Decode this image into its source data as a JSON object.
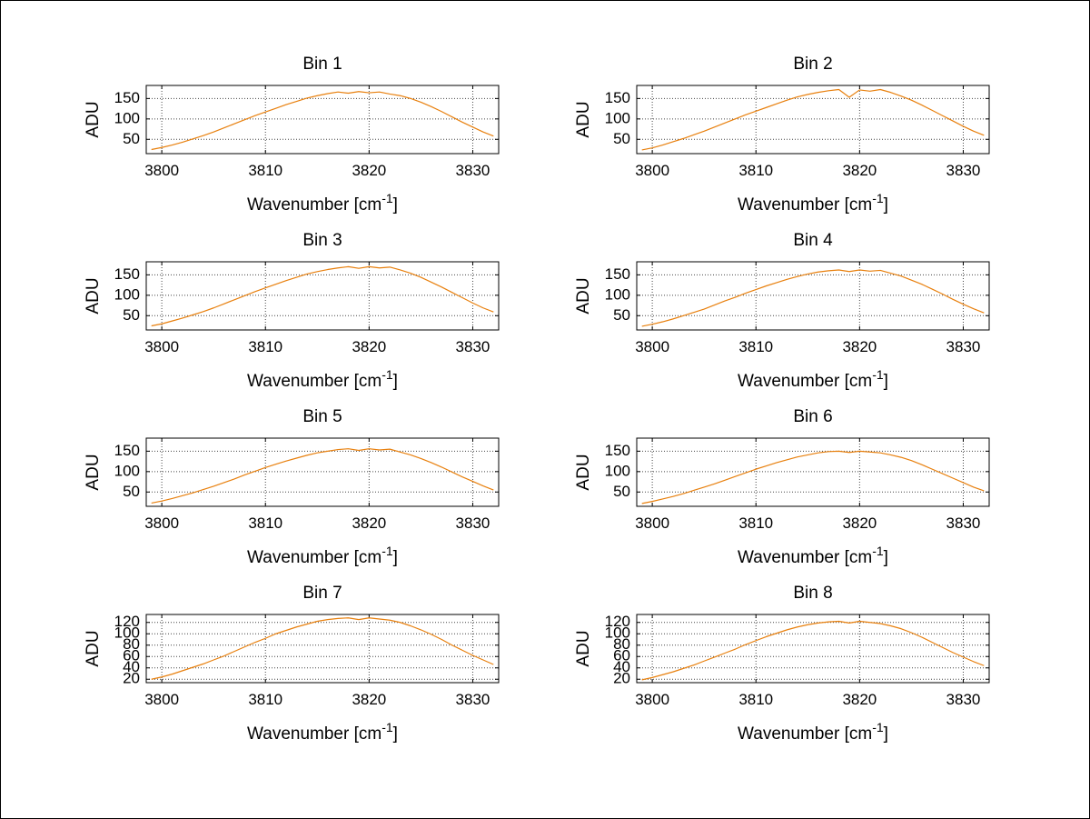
{
  "figure": {
    "background": "#ffffff",
    "border_color": "#000000"
  },
  "style": {
    "line_color": "#e8800e",
    "grid_color": "#444444",
    "axis_color": "#000000",
    "text_color": "#000000"
  },
  "labels": {
    "xlabel_main": "Wavenumber [cm",
    "xlabel_sup": "-1",
    "xlabel_end": "]",
    "ylabel": "ADU"
  },
  "chart_data": [
    {
      "type": "line",
      "title": "Bin 1",
      "xlabel": "Wavenumber [cm^-1]",
      "ylabel": "ADU",
      "x_start": 3799,
      "x_step": 1,
      "xlim": [
        3798.5,
        3832.5
      ],
      "x_ticks": [
        3800,
        3810,
        3820,
        3830
      ],
      "ylim": [
        15,
        182
      ],
      "y_ticks": [
        50,
        100,
        150
      ],
      "grid": true,
      "legend": false,
      "values": [
        25,
        30,
        36,
        43,
        51,
        59,
        68,
        78,
        88,
        98,
        108,
        117,
        126,
        135,
        143,
        151,
        157,
        162,
        166,
        163,
        167,
        164,
        166,
        161,
        157,
        150,
        141,
        130,
        118,
        105,
        92,
        80,
        68,
        58
      ]
    },
    {
      "type": "line",
      "title": "Bin 2",
      "xlabel": "Wavenumber [cm^-1]",
      "ylabel": "ADU",
      "x_start": 3799,
      "x_step": 1,
      "xlim": [
        3798.5,
        3832.5
      ],
      "x_ticks": [
        3800,
        3810,
        3820,
        3830
      ],
      "ylim": [
        15,
        182
      ],
      "y_ticks": [
        50,
        100,
        150
      ],
      "grid": true,
      "legend": false,
      "values": [
        24,
        29,
        36,
        44,
        52,
        61,
        70,
        80,
        90,
        100,
        110,
        119,
        128,
        137,
        146,
        154,
        160,
        165,
        169,
        172,
        153,
        171,
        168,
        172,
        165,
        156,
        146,
        134,
        121,
        108,
        95,
        82,
        70,
        60
      ]
    },
    {
      "type": "line",
      "title": "Bin 3",
      "xlabel": "Wavenumber [cm^-1]",
      "ylabel": "ADU",
      "x_start": 3799,
      "x_step": 1,
      "xlim": [
        3798.5,
        3832.5
      ],
      "x_ticks": [
        3800,
        3810,
        3820,
        3830
      ],
      "ylim": [
        15,
        182
      ],
      "y_ticks": [
        50,
        100,
        150
      ],
      "grid": true,
      "legend": false,
      "values": [
        25,
        30,
        37,
        44,
        52,
        60,
        69,
        79,
        89,
        99,
        109,
        118,
        127,
        136,
        144,
        152,
        158,
        163,
        167,
        170,
        166,
        170,
        167,
        169,
        162,
        154,
        144,
        132,
        120,
        107,
        94,
        81,
        69,
        59
      ]
    },
    {
      "type": "line",
      "title": "Bin 4",
      "xlabel": "Wavenumber [cm^-1]",
      "ylabel": "ADU",
      "x_start": 3799,
      "x_step": 1,
      "xlim": [
        3798.5,
        3832.5
      ],
      "x_ticks": [
        3800,
        3810,
        3820,
        3830
      ],
      "ylim": [
        15,
        182
      ],
      "y_ticks": [
        50,
        100,
        150
      ],
      "grid": true,
      "legend": false,
      "values": [
        24,
        29,
        35,
        42,
        50,
        58,
        66,
        76,
        86,
        95,
        105,
        114,
        123,
        131,
        139,
        146,
        152,
        157,
        160,
        162,
        158,
        162,
        159,
        161,
        154,
        147,
        137,
        127,
        115,
        103,
        90,
        78,
        67,
        57
      ]
    },
    {
      "type": "line",
      "title": "Bin 5",
      "xlabel": "Wavenumber [cm^-1]",
      "ylabel": "ADU",
      "x_start": 3799,
      "x_step": 1,
      "xlim": [
        3798.5,
        3832.5
      ],
      "x_ticks": [
        3800,
        3810,
        3820,
        3830
      ],
      "ylim": [
        15,
        182
      ],
      "y_ticks": [
        50,
        100,
        150
      ],
      "grid": true,
      "legend": false,
      "values": [
        23,
        28,
        34,
        41,
        48,
        56,
        64,
        73,
        82,
        92,
        101,
        110,
        118,
        126,
        133,
        140,
        146,
        150,
        154,
        156,
        152,
        156,
        153,
        155,
        148,
        141,
        132,
        122,
        111,
        99,
        87,
        76,
        65,
        55
      ]
    },
    {
      "type": "line",
      "title": "Bin 6",
      "xlabel": "Wavenumber [cm^-1]",
      "ylabel": "ADU",
      "x_start": 3799,
      "x_step": 1,
      "xlim": [
        3798.5,
        3832.5
      ],
      "x_ticks": [
        3800,
        3810,
        3820,
        3830
      ],
      "ylim": [
        15,
        182
      ],
      "y_ticks": [
        50,
        100,
        150
      ],
      "grid": true,
      "legend": false,
      "values": [
        22,
        27,
        33,
        39,
        46,
        54,
        62,
        70,
        79,
        88,
        97,
        106,
        114,
        122,
        129,
        136,
        141,
        146,
        149,
        150,
        147,
        150,
        148,
        146,
        141,
        135,
        127,
        117,
        106,
        95,
        84,
        73,
        62,
        53
      ]
    },
    {
      "type": "line",
      "title": "Bin 7",
      "xlabel": "Wavenumber [cm^-1]",
      "ylabel": "ADU",
      "x_start": 3799,
      "x_step": 1,
      "xlim": [
        3798.5,
        3832.5
      ],
      "x_ticks": [
        3800,
        3810,
        3820,
        3830
      ],
      "ylim": [
        14,
        134
      ],
      "y_ticks": [
        20,
        40,
        60,
        80,
        100,
        120
      ],
      "grid": true,
      "legend": false,
      "values": [
        20,
        24,
        29,
        35,
        41,
        47,
        54,
        61,
        69,
        77,
        85,
        92,
        100,
        106,
        112,
        117,
        122,
        125,
        127,
        128,
        125,
        128,
        126,
        124,
        120,
        114,
        107,
        99,
        90,
        80,
        71,
        62,
        54,
        46
      ]
    },
    {
      "type": "line",
      "title": "Bin 8",
      "xlabel": "Wavenumber [cm^-1]",
      "ylabel": "ADU",
      "x_start": 3799,
      "x_step": 1,
      "xlim": [
        3798.5,
        3832.5
      ],
      "x_ticks": [
        3800,
        3810,
        3820,
        3830
      ],
      "ylim": [
        14,
        134
      ],
      "y_ticks": [
        20,
        40,
        60,
        80,
        100,
        120
      ],
      "grid": true,
      "legend": false,
      "values": [
        19,
        23,
        28,
        33,
        39,
        45,
        52,
        59,
        66,
        73,
        81,
        88,
        95,
        101,
        107,
        112,
        116,
        119,
        121,
        122,
        119,
        122,
        120,
        118,
        114,
        109,
        102,
        94,
        85,
        76,
        67,
        59,
        51,
        44
      ]
    }
  ]
}
